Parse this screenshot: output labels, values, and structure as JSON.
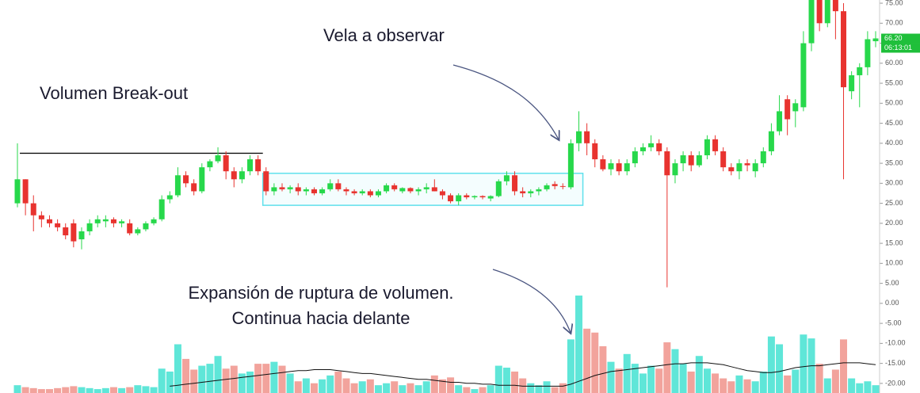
{
  "chart_data": {
    "type": "candlestick",
    "ylim": [
      -22.4,
      75.8
    ],
    "yticks": [
      {
        "value": 75,
        "label": "75.00"
      },
      {
        "value": 70,
        "label": "70.00"
      },
      {
        "value": 65,
        "label": "65.00"
      },
      {
        "value": 60,
        "label": "60.00"
      },
      {
        "value": 55,
        "label": "55.00"
      },
      {
        "value": 50,
        "label": "50.00"
      },
      {
        "value": 45,
        "label": "45.00"
      },
      {
        "value": 40,
        "label": "40.00"
      },
      {
        "value": 35,
        "label": "35.00"
      },
      {
        "value": 30,
        "label": "30.00"
      },
      {
        "value": 25,
        "label": "25.00"
      },
      {
        "value": 20,
        "label": "20.00"
      },
      {
        "value": 15,
        "label": "15.00"
      },
      {
        "value": 10,
        "label": "10.00"
      },
      {
        "value": 5,
        "label": "5.00"
      },
      {
        "value": 0,
        "label": "0.00"
      },
      {
        "value": -5,
        "label": "-5.00"
      },
      {
        "value": -10,
        "label": "-10.00"
      },
      {
        "value": -15,
        "label": "-15.00"
      },
      {
        "value": -20,
        "label": "-20.00"
      }
    ],
    "up_color": "#27d84b",
    "down_color": "#e8332f",
    "volume_up_color": "#5fe6d8",
    "volume_down_color": "#f2a39c",
    "ma_color": "#111111",
    "candles": [
      [
        25,
        40,
        24,
        31
      ],
      [
        31,
        31,
        22,
        25
      ],
      [
        25,
        27,
        18,
        22
      ],
      [
        22,
        23,
        19,
        21
      ],
      [
        21,
        22,
        19,
        20
      ],
      [
        20,
        21,
        18,
        19
      ],
      [
        19,
        20,
        16,
        17
      ],
      [
        20,
        21,
        14,
        15.5
      ],
      [
        16,
        19,
        13.5,
        18
      ],
      [
        18,
        21,
        17,
        20
      ],
      [
        20,
        22,
        19,
        21
      ],
      [
        20.5,
        22,
        19,
        21
      ],
      [
        21,
        21.5,
        19,
        20
      ],
      [
        20,
        21,
        19,
        20.5
      ],
      [
        20,
        21,
        17,
        17.5
      ],
      [
        17.5,
        19,
        17,
        18.5
      ],
      [
        18.5,
        20.5,
        18,
        20
      ],
      [
        20,
        21.5,
        19.5,
        21
      ],
      [
        21,
        27,
        20.5,
        26
      ],
      [
        26,
        28,
        25,
        27
      ],
      [
        27,
        34,
        26.5,
        32
      ],
      [
        32,
        33,
        29,
        30
      ],
      [
        30,
        31,
        27,
        28
      ],
      [
        28,
        35,
        27.5,
        34
      ],
      [
        34,
        36,
        33,
        35.5
      ],
      [
        35.5,
        39,
        35,
        37
      ],
      [
        37,
        38,
        31,
        33
      ],
      [
        33,
        34,
        29,
        31
      ],
      [
        31,
        34,
        30,
        33
      ],
      [
        33,
        37,
        32,
        36
      ],
      [
        36,
        37,
        32,
        33
      ],
      [
        33,
        34,
        27,
        28
      ],
      [
        28,
        30,
        27,
        29
      ],
      [
        29,
        30,
        28,
        28.5
      ],
      [
        28.5,
        29.5,
        27.5,
        29
      ],
      [
        29,
        30,
        27,
        28
      ],
      [
        28,
        29,
        27,
        28.5
      ],
      [
        28.5,
        29,
        27,
        27.5
      ],
      [
        27.5,
        29,
        27,
        28.5
      ],
      [
        28.5,
        31,
        28,
        30
      ],
      [
        30,
        31,
        28,
        28.5
      ],
      [
        28.5,
        29,
        27,
        28
      ],
      [
        28,
        28.5,
        27,
        27.5
      ],
      [
        27.5,
        28.5,
        27,
        28
      ],
      [
        28,
        28.5,
        26.5,
        27
      ],
      [
        27,
        28.5,
        26.5,
        28
      ],
      [
        28,
        30,
        27.5,
        29.5
      ],
      [
        29.5,
        30,
        28,
        28.5
      ],
      [
        28,
        29,
        27.5,
        28.8
      ],
      [
        28.8,
        29,
        27.5,
        28
      ],
      [
        28,
        29,
        27,
        28.5
      ],
      [
        28.5,
        30,
        27.5,
        29
      ],
      [
        29,
        31,
        28,
        28
      ],
      [
        28,
        28.5,
        26,
        27
      ],
      [
        27,
        27.5,
        25,
        25.5
      ],
      [
        25.5,
        27.5,
        24.5,
        27
      ],
      [
        27,
        27.5,
        26,
        26.5
      ],
      [
        26.5,
        27,
        26,
        26.8
      ],
      [
        26.8,
        27,
        26,
        26.5
      ],
      [
        26.2,
        27,
        25.5,
        26.8
      ],
      [
        26.8,
        31,
        26.5,
        30.5
      ],
      [
        30.5,
        33,
        29.5,
        32
      ],
      [
        32,
        33,
        27,
        28
      ],
      [
        28,
        29,
        26.5,
        27.5
      ],
      [
        27.5,
        28.5,
        26.5,
        28
      ],
      [
        28,
        29,
        27,
        28.5
      ],
      [
        28.5,
        30,
        28,
        29.5
      ],
      [
        29.8,
        30.5,
        28.5,
        29.3
      ],
      [
        29.3,
        30,
        28.5,
        29.2
      ],
      [
        29,
        41,
        28.5,
        40
      ],
      [
        40,
        48,
        38,
        43
      ],
      [
        43,
        45,
        37,
        40
      ],
      [
        40,
        41,
        34,
        36
      ],
      [
        36,
        37,
        33,
        33.5
      ],
      [
        33.5,
        36,
        32,
        35
      ],
      [
        35,
        36,
        32,
        33
      ],
      [
        33,
        36,
        32,
        35
      ],
      [
        35,
        39,
        34,
        38
      ],
      [
        38,
        40,
        37,
        39
      ],
      [
        39,
        42,
        38,
        40
      ],
      [
        40,
        41,
        37,
        38
      ],
      [
        38,
        39,
        4,
        32
      ],
      [
        32,
        36,
        30,
        35
      ],
      [
        35,
        38,
        33,
        37
      ],
      [
        37,
        38,
        33,
        34.5
      ],
      [
        34.5,
        38,
        34,
        37
      ],
      [
        37,
        42,
        36,
        41
      ],
      [
        41,
        42,
        37,
        38
      ],
      [
        38,
        39,
        33,
        34
      ],
      [
        34,
        35,
        32,
        33
      ],
      [
        33,
        36,
        31,
        35
      ],
      [
        35,
        36,
        33,
        34.5
      ],
      [
        33,
        36,
        31.5,
        35
      ],
      [
        35,
        39,
        34,
        38
      ],
      [
        38,
        45,
        37,
        43
      ],
      [
        43,
        52,
        42,
        48
      ],
      [
        51,
        52,
        42,
        46
      ],
      [
        48,
        51,
        44,
        50
      ],
      [
        49,
        68,
        48,
        65
      ],
      [
        65,
        78,
        63,
        77
      ],
      [
        77,
        78,
        68,
        70
      ],
      [
        70,
        78,
        69,
        77
      ],
      [
        77,
        78,
        66,
        73
      ],
      [
        73,
        75,
        31,
        54
      ],
      [
        53,
        58,
        51,
        57
      ],
      [
        57,
        60,
        49,
        59
      ],
      [
        59,
        68,
        57,
        66
      ],
      [
        65.5,
        68,
        64,
        66.2
      ]
    ],
    "vlim": [
      0,
      100
    ],
    "volume": [
      8,
      6,
      5,
      4,
      4,
      5,
      6,
      7,
      6,
      5,
      4,
      5,
      6,
      5,
      6,
      8,
      7,
      6,
      25,
      22,
      50,
      35,
      24,
      28,
      30,
      38,
      25,
      28,
      20,
      22,
      30,
      30,
      32,
      28,
      20,
      12,
      15,
      10,
      14,
      18,
      22,
      15,
      10,
      12,
      14,
      8,
      10,
      12,
      8,
      10,
      8,
      12,
      18,
      14,
      16,
      8,
      6,
      4,
      6,
      8,
      28,
      26,
      22,
      15,
      10,
      8,
      12,
      6,
      10,
      55,
      100,
      66,
      62,
      48,
      32,
      25,
      40,
      30,
      20,
      28,
      25,
      52,
      45,
      30,
      22,
      38,
      25,
      20,
      15,
      12,
      18,
      14,
      12,
      22,
      58,
      50,
      18,
      24,
      60,
      56,
      30,
      15,
      24,
      55,
      15,
      10,
      12,
      8
    ],
    "volume_ma": [
      null,
      null,
      null,
      null,
      null,
      null,
      null,
      null,
      null,
      null,
      null,
      null,
      null,
      null,
      null,
      null,
      null,
      null,
      null,
      7,
      8,
      9,
      10,
      11,
      12,
      13,
      14,
      15,
      16,
      17,
      18,
      19,
      20,
      21,
      22,
      23,
      23,
      24,
      24,
      24,
      23,
      22,
      21,
      20,
      20,
      19,
      18,
      17,
      16,
      15,
      14,
      14,
      13,
      12,
      11,
      11,
      10,
      10,
      9,
      9,
      8,
      8,
      8,
      7,
      7,
      7,
      7,
      7,
      7,
      9,
      12,
      15,
      18,
      20,
      22,
      23,
      24,
      25,
      26,
      27,
      28,
      29,
      30,
      30,
      31,
      31,
      31,
      30,
      29,
      27,
      25,
      23,
      22,
      21,
      21,
      22,
      24,
      26,
      27,
      28,
      28,
      29,
      30,
      31,
      31,
      31,
      30,
      29
    ],
    "resistance_level": 37.5,
    "range_box": {
      "low": 24.5,
      "high": 32.5
    },
    "last_price": {
      "value": 66.2,
      "label": "66.20"
    },
    "countdown": "06:13:01",
    "annotations": [
      "Volumen Break-out",
      "Vela a observar",
      "Expansión de ruptura de volumen.",
      "Continua hacia delante"
    ]
  }
}
